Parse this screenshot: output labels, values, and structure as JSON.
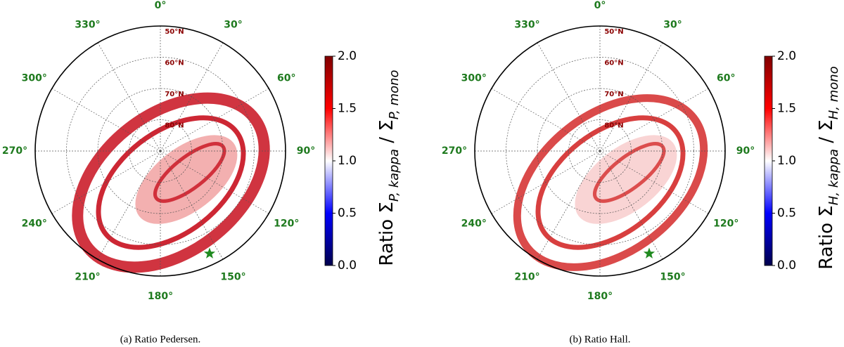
{
  "chart_data": [
    {
      "type": "polar",
      "caption": "(a)  Ratio Pedersen.",
      "theta_ticks": [
        {
          "value": 0,
          "label": "0°"
        },
        {
          "value": 30,
          "label": "30°"
        },
        {
          "value": 60,
          "label": "60°"
        },
        {
          "value": 90,
          "label": "90°"
        },
        {
          "value": 120,
          "label": "120°"
        },
        {
          "value": 150,
          "label": "150°"
        },
        {
          "value": 180,
          "label": "180°"
        },
        {
          "value": 210,
          "label": "210°"
        },
        {
          "value": 240,
          "label": "240°"
        },
        {
          "value": 270,
          "label": "270°"
        },
        {
          "value": 300,
          "label": "300°"
        },
        {
          "value": 330,
          "label": "330°"
        }
      ],
      "rlim": [
        90,
        50
      ],
      "rticks": [
        {
          "value": 50,
          "label": "50°N"
        },
        {
          "value": 60,
          "label": "60°N"
        },
        {
          "value": 70,
          "label": "70°N"
        },
        {
          "value": 80,
          "label": "80°N"
        }
      ],
      "colorbar": {
        "label": [
          "Ratio Σ",
          "P, kappa",
          " / Σ",
          "P, mono"
        ],
        "lim": [
          0,
          2
        ],
        "ticks": [
          {
            "value": 0,
            "label": "0.0"
          },
          {
            "value": 0.5,
            "label": "0.5"
          },
          {
            "value": 1,
            "label": "1.0"
          },
          {
            "value": 1.5,
            "label": "1.5"
          },
          {
            "value": 2,
            "label": "2.0"
          }
        ]
      }
    },
    {
      "type": "polar",
      "caption": "(b)  Ratio Hall.",
      "theta_ticks": [
        {
          "value": 0,
          "label": "0°"
        },
        {
          "value": 30,
          "label": "30°"
        },
        {
          "value": 60,
          "label": "60°"
        },
        {
          "value": 90,
          "label": "90°"
        },
        {
          "value": 120,
          "label": "120°"
        },
        {
          "value": 150,
          "label": "150°"
        },
        {
          "value": 180,
          "label": "180°"
        },
        {
          "value": 210,
          "label": "210°"
        },
        {
          "value": 240,
          "label": "240°"
        },
        {
          "value": 270,
          "label": "270°"
        },
        {
          "value": 300,
          "label": "300°"
        },
        {
          "value": 330,
          "label": "330°"
        }
      ],
      "rlim": [
        90,
        50
      ],
      "rticks": [
        {
          "value": 50,
          "label": "50°N"
        },
        {
          "value": 60,
          "label": "60°N"
        },
        {
          "value": 70,
          "label": "70°N"
        },
        {
          "value": 80,
          "label": "80°N"
        }
      ],
      "colorbar": {
        "label": [
          "Ratio Σ",
          "H, kappa",
          " / Σ",
          "H, mono"
        ],
        "lim": [
          0,
          2
        ],
        "ticks": [
          {
            "value": 0,
            "label": "0.0"
          },
          {
            "value": 0.5,
            "label": "0.5"
          },
          {
            "value": 1,
            "label": "1.0"
          },
          {
            "value": 1.5,
            "label": "1.5"
          },
          {
            "value": 2,
            "label": "2.0"
          }
        ]
      }
    }
  ]
}
